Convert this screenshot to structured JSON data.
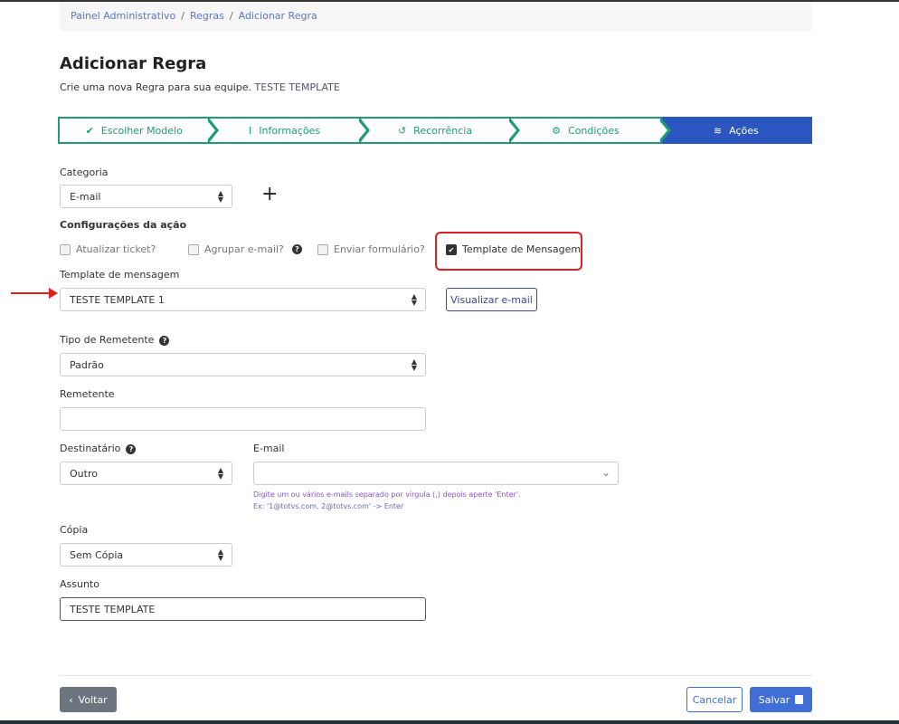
{
  "breadcrumb": {
    "items": [
      "Painel Administrativo",
      "Regras"
    ],
    "current": "Adicionar Regra"
  },
  "page": {
    "title": "Adicionar Regra",
    "subtitle": "Crie uma nova Regra para sua equipe.",
    "subtitle_name": "TESTE TEMPLATE"
  },
  "steps": [
    {
      "label": "Escolher Modelo",
      "icon": "double-check-icon"
    },
    {
      "label": "Informações",
      "icon": "text-cursor-icon"
    },
    {
      "label": "Recorrência",
      "icon": "undo-icon"
    },
    {
      "label": "Condições",
      "icon": "gear-icon"
    },
    {
      "label": "Ações",
      "icon": "layers-icon",
      "active": true
    }
  ],
  "form": {
    "categoria_label": "Categoria",
    "categoria_value": "E-mail",
    "config_label": "Configurações da ação",
    "checkboxes": [
      {
        "label": "Atualizar ticket?",
        "checked": false
      },
      {
        "label": "Agrupar e-mail?",
        "checked": false
      },
      {
        "label": "Enviar formulário?",
        "checked": false
      },
      {
        "label": "Template de Mensagem",
        "checked": true
      }
    ],
    "template_label": "Template de mensagem",
    "template_value": "TESTE TEMPLATE 1",
    "visualizar_label": "Visualizar e-mail",
    "tipo_label": "Tipo de Remetente",
    "tipo_value": "Padrão",
    "remetente_label": "Remetente",
    "remetente_value": "",
    "destinatario_label": "Destinatário",
    "destinatario_value": "Outro",
    "email_label": "E-mail",
    "email_help1": "Digite um ou vários e-mails separado por vírgula (,) depois aperte 'Enter'.",
    "email_help2": "Ex: '1@totvs.com, 2@totvs.com' -> Enter",
    "copia_label": "Cópia",
    "copia_value": "Sem Cópia",
    "assunto_label": "Assunto",
    "assunto_value": "TESTE TEMPLATE"
  },
  "footer": {
    "voltar": "Voltar",
    "cancelar": "Cancelar",
    "salvar": "Salvar"
  },
  "colors": {
    "step_green": "#1f9c74",
    "active_blue": "#2b56c0",
    "highlight_red": "#e02020"
  }
}
